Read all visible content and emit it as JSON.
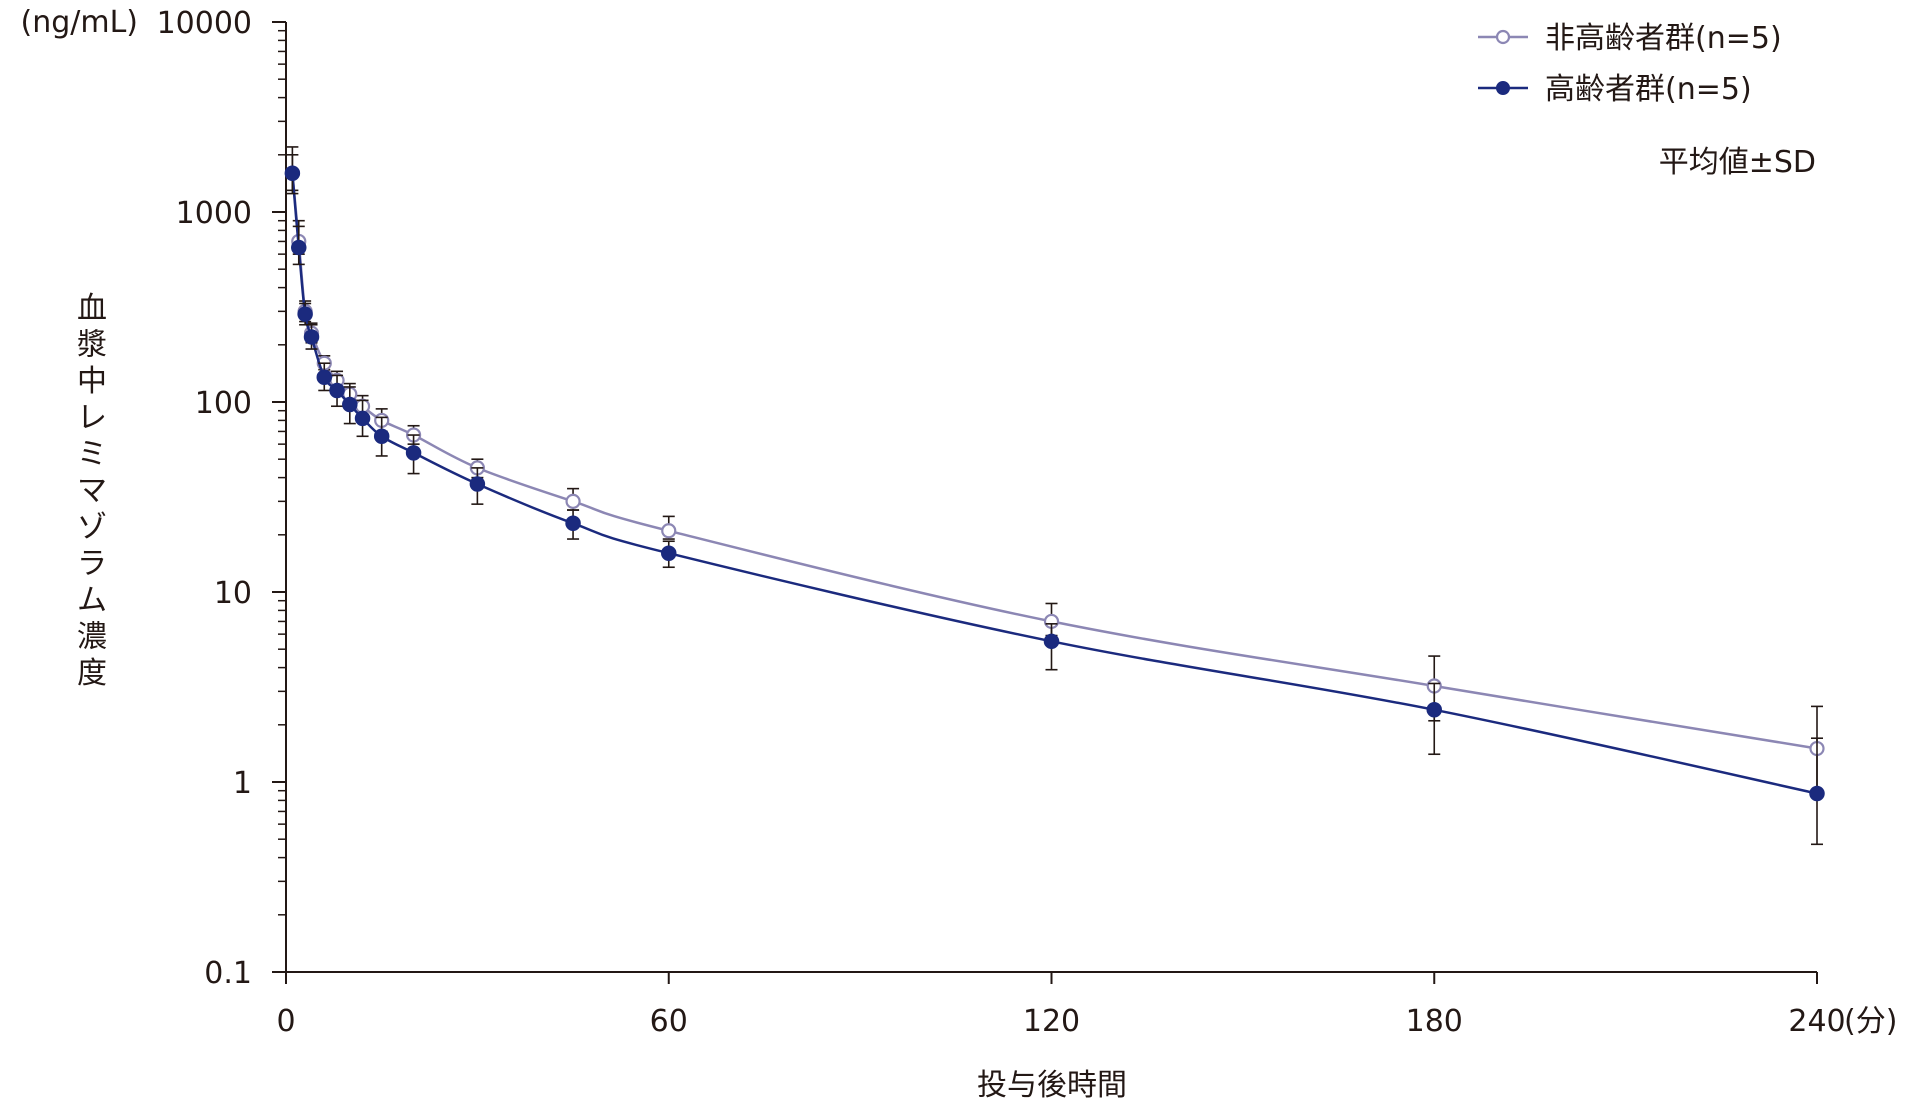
{
  "chart_data": {
    "type": "line",
    "y_scale": "log",
    "ylim": [
      0.1,
      10000
    ],
    "xlim": [
      0,
      240
    ],
    "x_ticks": [
      0,
      60,
      120,
      180,
      240
    ],
    "x_tick_labels": [
      "0",
      "60",
      "120",
      "180",
      "240"
    ],
    "y_ticks": [
      0.1,
      1,
      10,
      100,
      1000,
      10000
    ],
    "y_tick_labels": [
      "0.1",
      "1",
      "10",
      "100",
      "1000",
      "10000"
    ],
    "y_unit": "(ng/mL)",
    "x_unit": "(分)",
    "ylabel": "血漿中レミマゾラム濃度",
    "xlabel": "投与後時間",
    "annotation": "平均値±SD",
    "grid": false,
    "legend_position": "top-right",
    "series": [
      {
        "name": "非高齢者群(n=5)",
        "color": "#8c87b4",
        "marker": "open-circle",
        "x": [
          1,
          2,
          3,
          4,
          6,
          8,
          10,
          12,
          15,
          20,
          30,
          45,
          60,
          120,
          180,
          240
        ],
        "y": [
          1600,
          700,
          300,
          230,
          160,
          130,
          110,
          95,
          80,
          67,
          45,
          30,
          21,
          7.0,
          3.2,
          1.5
        ],
        "sd_upper": [
          2200,
          900,
          340,
          260,
          175,
          145,
          125,
          108,
          92,
          75,
          50,
          35,
          25,
          8.7,
          4.6,
          2.5
        ],
        "sd_lower": [
          1300,
          600,
          265,
          205,
          148,
          120,
          100,
          85,
          70,
          60,
          40,
          27,
          19,
          5.9,
          2.1,
          0.9
        ]
      },
      {
        "name": "高齢者群(n=5)",
        "color": "#1b2a7e",
        "marker": "filled-circle",
        "x": [
          1,
          2,
          3,
          4,
          6,
          8,
          10,
          12,
          15,
          20,
          30,
          45,
          60,
          120,
          180,
          240
        ],
        "y": [
          1600,
          650,
          290,
          220,
          135,
          115,
          97,
          82,
          66,
          54,
          37,
          23,
          16,
          5.5,
          2.4,
          0.87
        ],
        "sd_upper": [
          2000,
          840,
          330,
          255,
          160,
          138,
          120,
          102,
          83,
          67,
          45,
          27,
          18.5,
          6.8,
          3.3,
          1.7
        ],
        "sd_lower": [
          1250,
          530,
          255,
          190,
          115,
          95,
          77,
          66,
          52,
          42,
          29,
          19,
          13.5,
          3.9,
          1.4,
          0.47
        ]
      }
    ]
  }
}
